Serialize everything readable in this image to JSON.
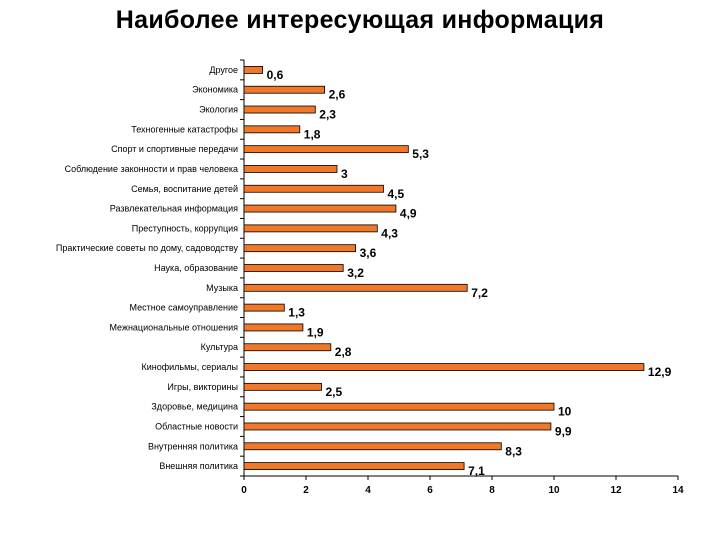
{
  "chart_data": {
    "type": "bar",
    "orientation": "horizontal",
    "title": "Наиболее интересующая информация",
    "categories": [
      "Другое",
      "Экономика",
      "Экология",
      "Техногенные катастрофы",
      "Спорт и спортивные передачи",
      "Соблюдение законности и прав человека",
      "Семья, воспитание детей",
      "Развлекательная информация",
      "Преступность, коррупция",
      "Практические советы по дому, садоводству",
      "Наука, образование",
      "Музыка",
      "Местное самоуправление",
      "Межнациональные отношения",
      "Культура",
      "Кинофильмы, сериалы",
      "Игры, викторины",
      "Здоровье, медицина",
      "Областные новости",
      "Внутренняя политика",
      "Внешняя политика"
    ],
    "values": [
      0.6,
      2.6,
      2.3,
      1.8,
      5.3,
      3,
      4.5,
      4.9,
      4.3,
      3.6,
      3.2,
      7.2,
      1.3,
      1.9,
      2.8,
      12.9,
      2.5,
      10,
      9.9,
      8.3,
      7.1
    ],
    "value_labels": [
      "0,6",
      "2,6",
      "2,3",
      "1,8",
      "5,3",
      "3",
      "4,5",
      "4,9",
      "4,3",
      "3,6",
      "3,2",
      "7,2",
      "1,3",
      "1,9",
      "2,8",
      "12,9",
      "2,5",
      "10",
      "9,9",
      "8,3",
      "7,1"
    ],
    "xlim": [
      0,
      14
    ],
    "x_ticks": [
      0,
      2,
      4,
      6,
      8,
      10,
      12,
      14
    ],
    "xlabel": "",
    "ylabel": "",
    "grid": false,
    "legend": "none",
    "colors": {
      "bar_fill": "#F07828",
      "bar_stroke": "#000000"
    }
  }
}
